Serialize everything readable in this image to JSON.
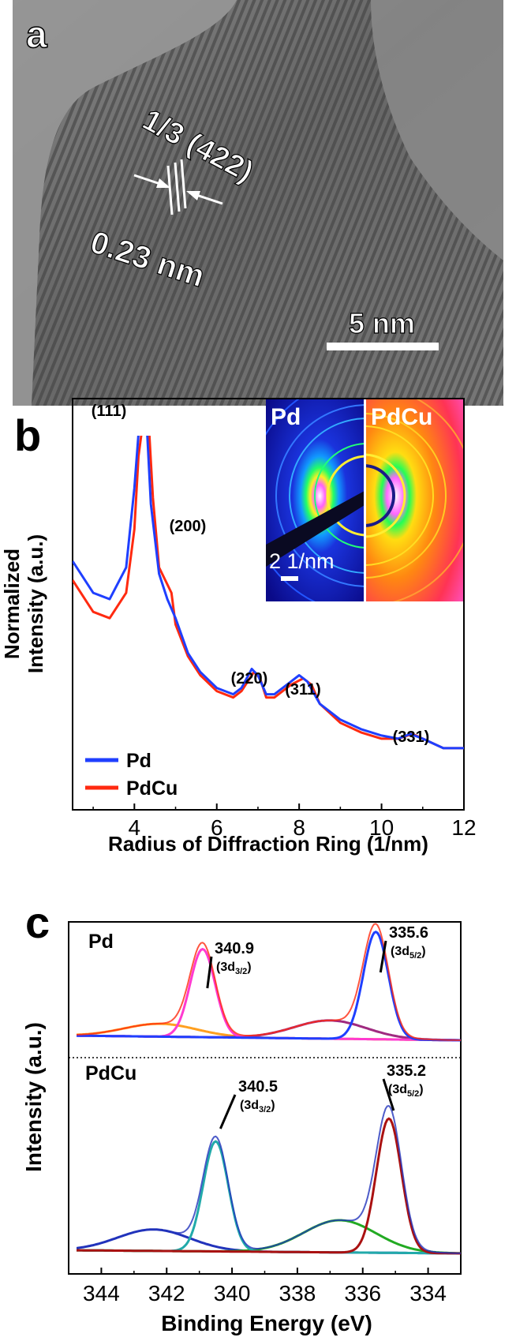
{
  "panel_a": {
    "letter": "a",
    "annotation_plane": "1/3 (422)",
    "annotation_spacing": "0.23 nm",
    "scale_bar": "5 nm"
  },
  "panel_b": {
    "letter": "b",
    "inset_left": "Pd",
    "inset_right": "PdCu",
    "inset_scale": "2 1/nm"
  },
  "panel_c": {
    "letter": "c",
    "top_label": "Pd",
    "bottom_label": "PdCu"
  },
  "colors": {
    "pd_blue": "#1f3fff",
    "pdcu_red": "#ff2a10",
    "magenta": "#ff3ad0",
    "orange": "#ffa020",
    "purple": "#a02a80",
    "navy": "#2233bb",
    "teal": "#22aaaa",
    "green": "#22aa22",
    "darkred": "#aa1111"
  },
  "chart_data": [
    {
      "type": "line",
      "panel": "b",
      "xlabel": "Radius of Diffraction Ring (1/nm)",
      "ylabel": "Normalized Intensity (a.u.)",
      "xlim": [
        2.5,
        12
      ],
      "xticks": [
        "4",
        "6",
        "8",
        "10",
        "12"
      ],
      "legend_position": "bottom-left",
      "peak_labels": [
        {
          "text": "(111)",
          "x": 4.2
        },
        {
          "text": "(200)",
          "x": 4.9
        },
        {
          "text": "(220)",
          "x": 6.85
        },
        {
          "text": "(311)",
          "x": 8.05
        },
        {
          "text": "(331)",
          "x": 10.65
        }
      ],
      "series": [
        {
          "name": "Pd",
          "color": "#1f3fff",
          "x": [
            2.5,
            3.0,
            3.4,
            3.8,
            4.0,
            4.1,
            4.2,
            4.3,
            4.4,
            4.6,
            4.8,
            5.0,
            5.3,
            5.6,
            6.0,
            6.4,
            6.6,
            6.85,
            7.0,
            7.2,
            7.4,
            7.6,
            7.8,
            8.0,
            8.2,
            8.5,
            9.0,
            9.5,
            10.0,
            10.4,
            10.7,
            11.0,
            11.5,
            12.0
          ],
          "y": [
            0.62,
            0.52,
            0.5,
            0.6,
            0.85,
            1.02,
            1.1,
            1.05,
            0.8,
            0.58,
            0.5,
            0.44,
            0.33,
            0.27,
            0.22,
            0.2,
            0.22,
            0.28,
            0.26,
            0.2,
            0.2,
            0.22,
            0.24,
            0.26,
            0.24,
            0.17,
            0.12,
            0.09,
            0.07,
            0.06,
            0.075,
            0.06,
            0.03,
            0.03
          ]
        },
        {
          "name": "PdCu",
          "color": "#ff2a10",
          "x": [
            2.5,
            3.0,
            3.4,
            3.8,
            4.0,
            4.1,
            4.25,
            4.35,
            4.45,
            4.6,
            4.9,
            5.0,
            5.3,
            5.6,
            6.0,
            6.4,
            6.6,
            6.9,
            7.05,
            7.2,
            7.4,
            7.6,
            7.8,
            8.1,
            8.3,
            8.5,
            9.0,
            9.5,
            10.0,
            10.4,
            10.75,
            11.0,
            11.5,
            12.0
          ],
          "y": [
            0.56,
            0.46,
            0.44,
            0.52,
            0.72,
            0.95,
            1.1,
            1.05,
            0.82,
            0.6,
            0.52,
            0.42,
            0.32,
            0.26,
            0.21,
            0.19,
            0.21,
            0.27,
            0.25,
            0.19,
            0.19,
            0.21,
            0.23,
            0.25,
            0.23,
            0.17,
            0.11,
            0.08,
            0.06,
            0.06,
            0.075,
            0.06,
            0.03,
            0.03
          ]
        }
      ]
    },
    {
      "type": "line",
      "panel": "c",
      "xlabel": "Binding Energy (eV)",
      "ylabel": "Intensity (a.u.)",
      "xlim": [
        345,
        333
      ],
      "xticks": [
        "344",
        "342",
        "340",
        "338",
        "336",
        "334"
      ],
      "annotations": [
        {
          "group": "Pd",
          "value": "340.9",
          "orbital": "3d",
          "sub": "3/2",
          "x": 340.9
        },
        {
          "group": "Pd",
          "value": "335.6",
          "orbital": "3d",
          "sub": "5/2",
          "x": 335.6
        },
        {
          "group": "PdCu",
          "value": "340.5",
          "orbital": "3d",
          "sub": "3/2",
          "x": 340.5
        },
        {
          "group": "PdCu",
          "value": "335.2",
          "orbital": "3d",
          "sub": "5/2",
          "x": 335.2
        }
      ],
      "components": {
        "Pd": [
          {
            "role": "peak_3d5/2",
            "center": 335.6,
            "fwhm": 0.9,
            "amp": 1.0,
            "color": "#1f3fff"
          },
          {
            "role": "peak_3d3/2",
            "center": 340.9,
            "fwhm": 0.9,
            "amp": 0.82,
            "color": "#ff3ad0"
          },
          {
            "role": "satellite",
            "center": 337.0,
            "fwhm": 2.6,
            "amp": 0.17,
            "color": "#a02a80"
          },
          {
            "role": "satellite",
            "center": 342.2,
            "fwhm": 2.6,
            "amp": 0.12,
            "color": "#ffa020"
          },
          {
            "role": "envelope",
            "color": "#ff2a10"
          }
        ],
        "PdCu": [
          {
            "role": "peak_3d5/2",
            "center": 335.2,
            "fwhm": 0.9,
            "amp": 1.0,
            "color": "#aa1111"
          },
          {
            "role": "peak_3d3/2",
            "center": 340.5,
            "fwhm": 0.9,
            "amp": 0.82,
            "color": "#22aaaa"
          },
          {
            "role": "satellite",
            "center": 336.7,
            "fwhm": 2.6,
            "amp": 0.24,
            "color": "#22aa22"
          },
          {
            "role": "satellite",
            "center": 342.4,
            "fwhm": 2.6,
            "amp": 0.16,
            "color": "#2233bb"
          },
          {
            "role": "envelope",
            "color": "#2233bb"
          }
        ]
      }
    }
  ]
}
